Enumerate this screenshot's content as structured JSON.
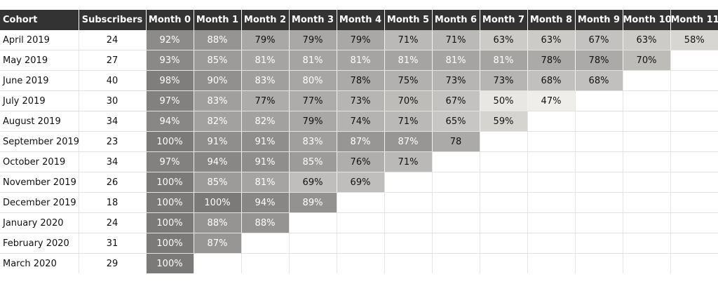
{
  "chart_data": {
    "type": "heatmap",
    "columns": [
      "Cohort",
      "Subscribers",
      "Month 0",
      "Month 1",
      "Month 2",
      "Month 3",
      "Month 4",
      "Month 5",
      "Month 6",
      "Month 7",
      "Month 8",
      "Month 9",
      "Month 10",
      "Month 11"
    ],
    "rows": [
      {
        "cohort": "April 2019",
        "subscribers": "24",
        "retention": [
          "92%",
          "88%",
          "79%",
          "79%",
          "79%",
          "71%",
          "71%",
          "63%",
          "63%",
          "67%",
          "63%",
          "58%"
        ]
      },
      {
        "cohort": "May 2019",
        "subscribers": "27",
        "retention": [
          "93%",
          "85%",
          "81%",
          "81%",
          "81%",
          "81%",
          "81%",
          "81%",
          "78%",
          "78%",
          "70%"
        ]
      },
      {
        "cohort": "June 2019",
        "subscribers": "40",
        "retention": [
          "98%",
          "90%",
          "83%",
          "80%",
          "78%",
          "75%",
          "73%",
          "73%",
          "68%",
          "68%"
        ]
      },
      {
        "cohort": "July 2019",
        "subscribers": "30",
        "retention": [
          "97%",
          "83%",
          "77%",
          "77%",
          "73%",
          "70%",
          "67%",
          "50%",
          "47%"
        ]
      },
      {
        "cohort": "August 2019",
        "subscribers": "34",
        "retention": [
          "94%",
          "82%",
          "82%",
          "79%",
          "74%",
          "71%",
          "65%",
          "59%"
        ]
      },
      {
        "cohort": "September 2019",
        "subscribers": "23",
        "retention": [
          "100%",
          "91%",
          "91%",
          "83%",
          "87%",
          "87%",
          "78"
        ]
      },
      {
        "cohort": "October 2019",
        "subscribers": "34",
        "retention": [
          "97%",
          "94%",
          "91%",
          "85%",
          "76%",
          "71%"
        ]
      },
      {
        "cohort": "November 2019",
        "subscribers": "26",
        "retention": [
          "100%",
          "85%",
          "81%",
          "69%",
          "69%"
        ]
      },
      {
        "cohort": "December 2019",
        "subscribers": "18",
        "retention": [
          "100%",
          "100%",
          "94%",
          "89%"
        ]
      },
      {
        "cohort": "January 2020",
        "subscribers": "24",
        "retention": [
          "100%",
          "88%",
          "88%"
        ]
      },
      {
        "cohort": "February 2020",
        "subscribers": "31",
        "retention": [
          "100%",
          "87%"
        ]
      },
      {
        "cohort": "March 2020",
        "subscribers": "29",
        "retention": [
          "100%"
        ]
      }
    ]
  },
  "colors": {
    "header_bg": "#333333",
    "header_text": "#ffffff",
    "cell_dark": "#7c7a79",
    "cell_light": "#f2f0ed",
    "light_text_on_dark": "#ffffff",
    "dark_text_on_light": "#111111"
  }
}
